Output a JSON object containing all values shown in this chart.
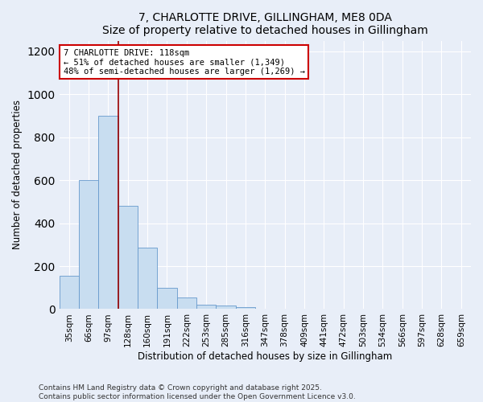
{
  "title": "7, CHARLOTTE DRIVE, GILLINGHAM, ME8 0DA",
  "subtitle": "Size of property relative to detached houses in Gillingham",
  "xlabel": "Distribution of detached houses by size in Gillingham",
  "ylabel": "Number of detached properties",
  "categories": [
    "35sqm",
    "66sqm",
    "97sqm",
    "128sqm",
    "160sqm",
    "191sqm",
    "222sqm",
    "253sqm",
    "285sqm",
    "316sqm",
    "347sqm",
    "378sqm",
    "409sqm",
    "441sqm",
    "472sqm",
    "503sqm",
    "534sqm",
    "566sqm",
    "597sqm",
    "628sqm",
    "659sqm"
  ],
  "values": [
    155,
    600,
    900,
    480,
    285,
    100,
    55,
    20,
    15,
    8,
    3,
    3,
    2,
    2,
    1,
    1,
    1,
    0,
    0,
    0,
    0
  ],
  "bar_color": "#c8ddf0",
  "bar_edge_color": "#6699cc",
  "vline_x": 2.5,
  "annotation_line1": "7 CHARLOTTE DRIVE: 118sqm",
  "annotation_line2": "← 51% of detached houses are smaller (1,349)",
  "annotation_line3": "48% of semi-detached houses are larger (1,269) →",
  "annotation_box_color": "#ffffff",
  "annotation_border_color": "#cc0000",
  "vline_color": "#990000",
  "footer_line1": "Contains HM Land Registry data © Crown copyright and database right 2025.",
  "footer_line2": "Contains public sector information licensed under the Open Government Licence v3.0.",
  "bg_color": "#e8eef8",
  "plot_bg_color": "#e8eef8",
  "ylim": [
    0,
    1250
  ],
  "yticks": [
    0,
    200,
    400,
    600,
    800,
    1000,
    1200
  ],
  "grid_color": "#ffffff",
  "title_fontsize": 10,
  "subtitle_fontsize": 9,
  "axis_label_fontsize": 8.5,
  "tick_fontsize": 7.5,
  "annotation_fontsize": 7.5,
  "footer_fontsize": 6.5
}
